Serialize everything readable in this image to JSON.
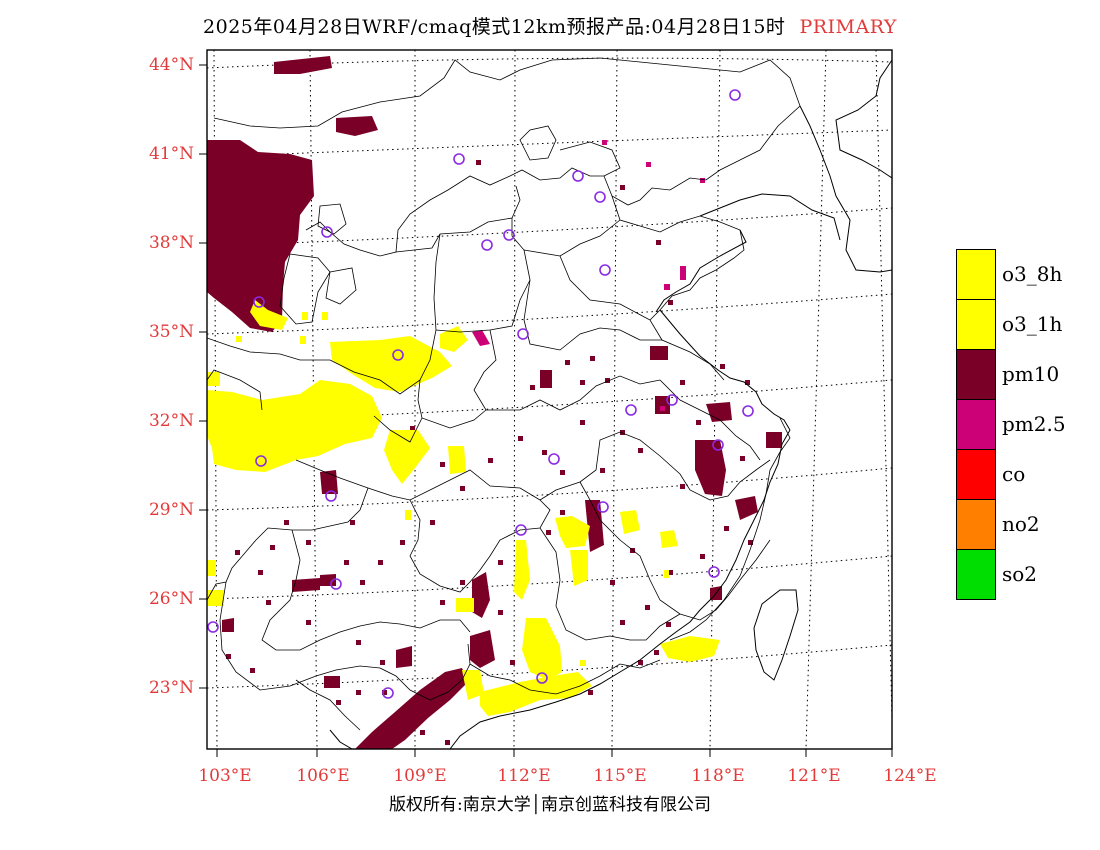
{
  "title": {
    "main": "2025年04月28日WRF/cmaq模式12km预报产品:04月28日15时",
    "tag": "PRIMARY"
  },
  "axes": {
    "lat_labels": [
      "44°N",
      "41°N",
      "38°N",
      "35°N",
      "32°N",
      "29°N",
      "26°N",
      "23°N"
    ],
    "lon_labels": [
      "103°E",
      "106°E",
      "109°E",
      "112°E",
      "115°E",
      "118°E",
      "121°E",
      "124°E"
    ]
  },
  "legend": [
    {
      "label": "o3_8h",
      "color": "#ffff00"
    },
    {
      "label": "o3_1h",
      "color": "#ffff00"
    },
    {
      "label": "pm10",
      "color": "#7a0028"
    },
    {
      "label": "pm2.5",
      "color": "#cc0077"
    },
    {
      "label": "co",
      "color": "#ff0000"
    },
    {
      "label": "no2",
      "color": "#ff7f00"
    },
    {
      "label": "so2",
      "color": "#00dd00"
    }
  ],
  "copyright": "版权所有:南京大学│南京创蓝科技有限公司",
  "colors": {
    "pm10": "#7a0028",
    "pm25": "#cc0077",
    "o3": "#ffff00",
    "station_ring": "#8a2be2",
    "label": "#e23a3a"
  }
}
